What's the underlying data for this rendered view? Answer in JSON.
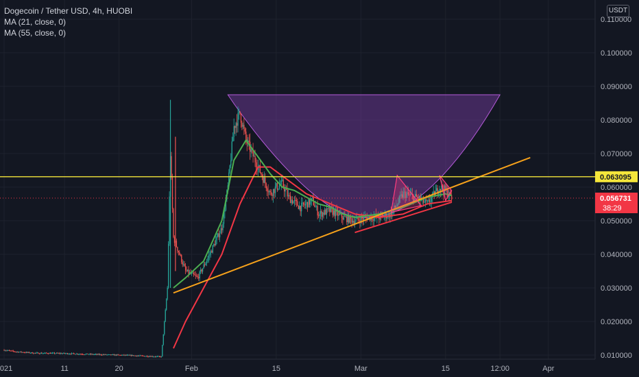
{
  "header": {
    "symbol_line": "Dogecoin / Tether USD, 4h, HUOBI",
    "ma1_label": "MA (21, close, 0)",
    "ma2_label": "MA (55, close, 0)",
    "currency": "USDT"
  },
  "colors": {
    "background": "#131722",
    "grid": "#1e222d",
    "axis_text": "#b2b5be",
    "candle_up": "#26a69a",
    "candle_down": "#ef5350",
    "ma21": "#4caf50",
    "ma55": "#f23645",
    "resistance": "#f5e63b",
    "trendline": "#f7a21b",
    "pattern_fill": "#7b3fa6",
    "pattern_edge": "#b45ad8",
    "triangle": "#ff3d7f",
    "price_label": "#f23645",
    "resistance_label_bg": "#f5e63b"
  },
  "chart_data": {
    "type": "candlestick",
    "ylim": [
      0.01,
      0.11
    ],
    "y_ticks": [
      "0.110000",
      "0.100000",
      "0.090000",
      "0.080000",
      "0.070000",
      "0.060000",
      "0.050000",
      "0.040000",
      "0.030000",
      "0.020000",
      "0.010000"
    ],
    "y_tick_values": [
      0.11,
      0.1,
      0.09,
      0.08,
      0.07,
      0.06,
      0.05,
      0.04,
      0.03,
      0.02,
      0.01
    ],
    "x_ticks": [
      "2021",
      "11",
      "20",
      "Feb",
      "15",
      "Mar",
      "15",
      "12:00",
      "Apr"
    ],
    "x_tick_dates": [
      "2021-01-01",
      "2021-01-11",
      "2021-01-20",
      "2021-02-01",
      "2021-02-15",
      "2021-03-01",
      "2021-03-15",
      "2021-03-24",
      "2021-04-01"
    ],
    "resistance_price": 0.063095,
    "resistance_label": "0.063095",
    "last_price": 0.056731,
    "last_price_label": "0.056731",
    "countdown": "38:29",
    "price_path": [
      [
        "2021-01-01",
        0.0115
      ],
      [
        "2021-01-03",
        0.011
      ],
      [
        "2021-01-06",
        0.0106
      ],
      [
        "2021-01-11",
        0.0105
      ],
      [
        "2021-01-16",
        0.0102
      ],
      [
        "2021-01-22",
        0.0099
      ],
      [
        "2021-01-27",
        0.0095
      ],
      [
        "2021-01-28",
        0.03
      ],
      [
        "2021-01-28T12:00",
        0.07
      ],
      [
        "2021-01-29",
        0.045
      ],
      [
        "2021-01-30",
        0.04
      ],
      [
        "2021-01-31",
        0.035
      ],
      [
        "2021-02-02",
        0.033
      ],
      [
        "2021-02-04",
        0.04
      ],
      [
        "2021-02-06",
        0.048
      ],
      [
        "2021-02-07",
        0.06
      ],
      [
        "2021-02-08",
        0.078
      ],
      [
        "2021-02-09",
        0.082
      ],
      [
        "2021-02-10",
        0.074
      ],
      [
        "2021-02-11",
        0.07
      ],
      [
        "2021-02-12",
        0.066
      ],
      [
        "2021-02-13",
        0.062
      ],
      [
        "2021-02-14",
        0.058
      ],
      [
        "2021-02-15",
        0.06
      ],
      [
        "2021-02-16",
        0.061
      ],
      [
        "2021-02-17",
        0.057
      ],
      [
        "2021-02-19",
        0.054
      ],
      [
        "2021-02-21",
        0.056
      ],
      [
        "2021-02-22",
        0.052
      ],
      [
        "2021-02-24",
        0.053
      ],
      [
        "2021-02-26",
        0.051
      ],
      [
        "2021-02-28",
        0.05
      ],
      [
        "2021-03-02",
        0.051
      ],
      [
        "2021-03-04",
        0.051
      ],
      [
        "2021-03-06",
        0.052
      ],
      [
        "2021-03-08",
        0.058
      ],
      [
        "2021-03-10",
        0.057
      ],
      [
        "2021-03-12",
        0.055
      ],
      [
        "2021-03-14",
        0.06
      ],
      [
        "2021-03-15",
        0.059
      ],
      [
        "2021-03-16",
        0.0567
      ]
    ],
    "ma21_path": [
      [
        "2021-01-29",
        0.03
      ],
      [
        "2021-01-31",
        0.033
      ],
      [
        "2021-02-03",
        0.038
      ],
      [
        "2021-02-06",
        0.05
      ],
      [
        "2021-02-08",
        0.068
      ],
      [
        "2021-02-10",
        0.074
      ],
      [
        "2021-02-12",
        0.069
      ],
      [
        "2021-02-14",
        0.064
      ],
      [
        "2021-02-16",
        0.06
      ],
      [
        "2021-02-18",
        0.059
      ],
      [
        "2021-02-20",
        0.057
      ],
      [
        "2021-02-22",
        0.055
      ],
      [
        "2021-02-24",
        0.054
      ],
      [
        "2021-02-26",
        0.052
      ],
      [
        "2021-02-28",
        0.051
      ],
      [
        "2021-03-04",
        0.052
      ],
      [
        "2021-03-08",
        0.054
      ],
      [
        "2021-03-12",
        0.057
      ],
      [
        "2021-03-15",
        0.058
      ],
      [
        "2021-03-16",
        0.0575
      ]
    ],
    "ma55_path": [
      [
        "2021-01-29",
        0.012
      ],
      [
        "2021-01-31",
        0.02
      ],
      [
        "2021-02-03",
        0.03
      ],
      [
        "2021-02-06",
        0.04
      ],
      [
        "2021-02-09",
        0.055
      ],
      [
        "2021-02-12",
        0.066
      ],
      [
        "2021-02-14",
        0.066
      ],
      [
        "2021-02-17",
        0.062
      ],
      [
        "2021-02-20",
        0.058
      ],
      [
        "2021-02-24",
        0.055
      ],
      [
        "2021-02-28",
        0.052
      ],
      [
        "2021-03-04",
        0.051
      ],
      [
        "2021-03-08",
        0.052
      ],
      [
        "2021-03-12",
        0.055
      ],
      [
        "2021-03-16",
        0.056
      ]
    ],
    "drawings": {
      "rounded_bottom_pattern": {
        "top_left": [
          "2021-02-07",
          0.0875
        ],
        "top_right": [
          "2021-03-24",
          0.0875
        ],
        "bottom": [
          "2021-03-01",
          0.051
        ]
      },
      "ascending_trendline": {
        "start": [
          "2021-01-29",
          0.0285
        ],
        "end": [
          "2021-03-29",
          0.0688
        ]
      },
      "support_line": {
        "start": [
          "2021-02-28",
          0.0465
        ],
        "end": [
          "2021-03-16",
          0.0555
        ]
      },
      "triangles": [
        {
          "points": [
            [
              "2021-03-07",
              0.0635
            ],
            [
              "2021-03-11",
              0.0545
            ],
            [
              "2021-03-06",
              0.0525
            ]
          ]
        },
        {
          "points": [
            [
              "2021-03-14",
              0.0635
            ],
            [
              "2021-03-16",
              0.059
            ],
            [
              "2021-03-15",
              0.056
            ]
          ]
        }
      ]
    }
  }
}
